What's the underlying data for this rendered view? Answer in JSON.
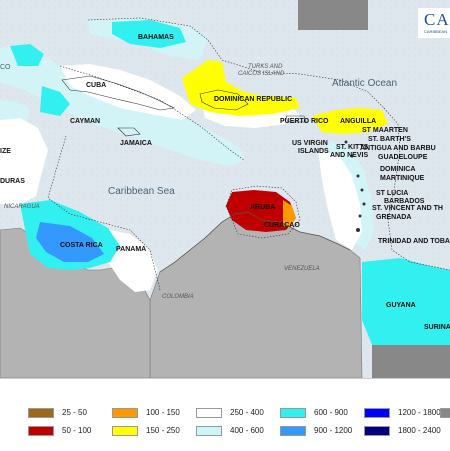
{
  "labels": {
    "bahamas": "BAHAMAS",
    "cuba": "CUBA",
    "cayman": "CAYMAN",
    "jamaica": "JAMAICA",
    "turks": "TURKS AND",
    "caicos": "CAICOS ISLAND",
    "dominican": "DOMINICAN REPUBLIC",
    "puerto_rico": "PUERTO RICO",
    "usvi1": "US VIRGIN",
    "usvi2": "ISLANDS",
    "anguilla": "ANGUILLA",
    "st_maarten": "ST MAARTEN",
    "st_barths": "ST. BARTH'S",
    "antigua": "ANTIGUA AND BARBU",
    "st_kitts1": "ST. KITTS",
    "st_kitts2": "AND NEVIS",
    "guadeloupe": "GUADELOUPE",
    "dominica": "DOMINICA",
    "martinique": "MARTINIQUE",
    "st_lucia": "ST LUCIA",
    "barbados": "BARBADOS",
    "st_vincent": "ST. VINCENT AND TH",
    "grenada": "GRENADA",
    "trinidad": "TRINIDAD AND TOBA",
    "guyana": "GUYANA",
    "suriname": "SURINA",
    "aruba": "ARUBA",
    "curacao": "CURAÇAO",
    "costa_rica": "COSTA RICA",
    "panama": "PANAMA",
    "honduras": "DURAS",
    "belize": "IZE",
    "nicaragua": "NICARAGUA",
    "venezuela": "VENEZUELA",
    "colombia": "COLOMBIA",
    "caribbean_sea": "Caribbean Sea",
    "atlantic_ocean": "Atlantic Ocean",
    "co_partial": "CO"
  },
  "logo": {
    "text": "CA",
    "subtext": "CARIBBEAN"
  },
  "legend": [
    {
      "label": "25 - 50",
      "color": "#9b6a1c"
    },
    {
      "label": "50 - 100",
      "color": "#c00000"
    },
    {
      "label": "100 - 150",
      "color": "#ff9900"
    },
    {
      "label": "150 - 250",
      "color": "#ffff00"
    },
    {
      "label": "250 - 400",
      "color": "#ffffff"
    },
    {
      "label": "400 - 600",
      "color": "#ccf5f5"
    },
    {
      "label": "600 - 900",
      "color": "#33f0f0"
    },
    {
      "label": "900 - 1200",
      "color": "#3399ff"
    },
    {
      "label": "1200 - 1800",
      "color": "#0000ff"
    },
    {
      "label": "1800 - 2400",
      "color": "#000080"
    },
    {
      "label": "",
      "color": "#888888"
    }
  ]
}
